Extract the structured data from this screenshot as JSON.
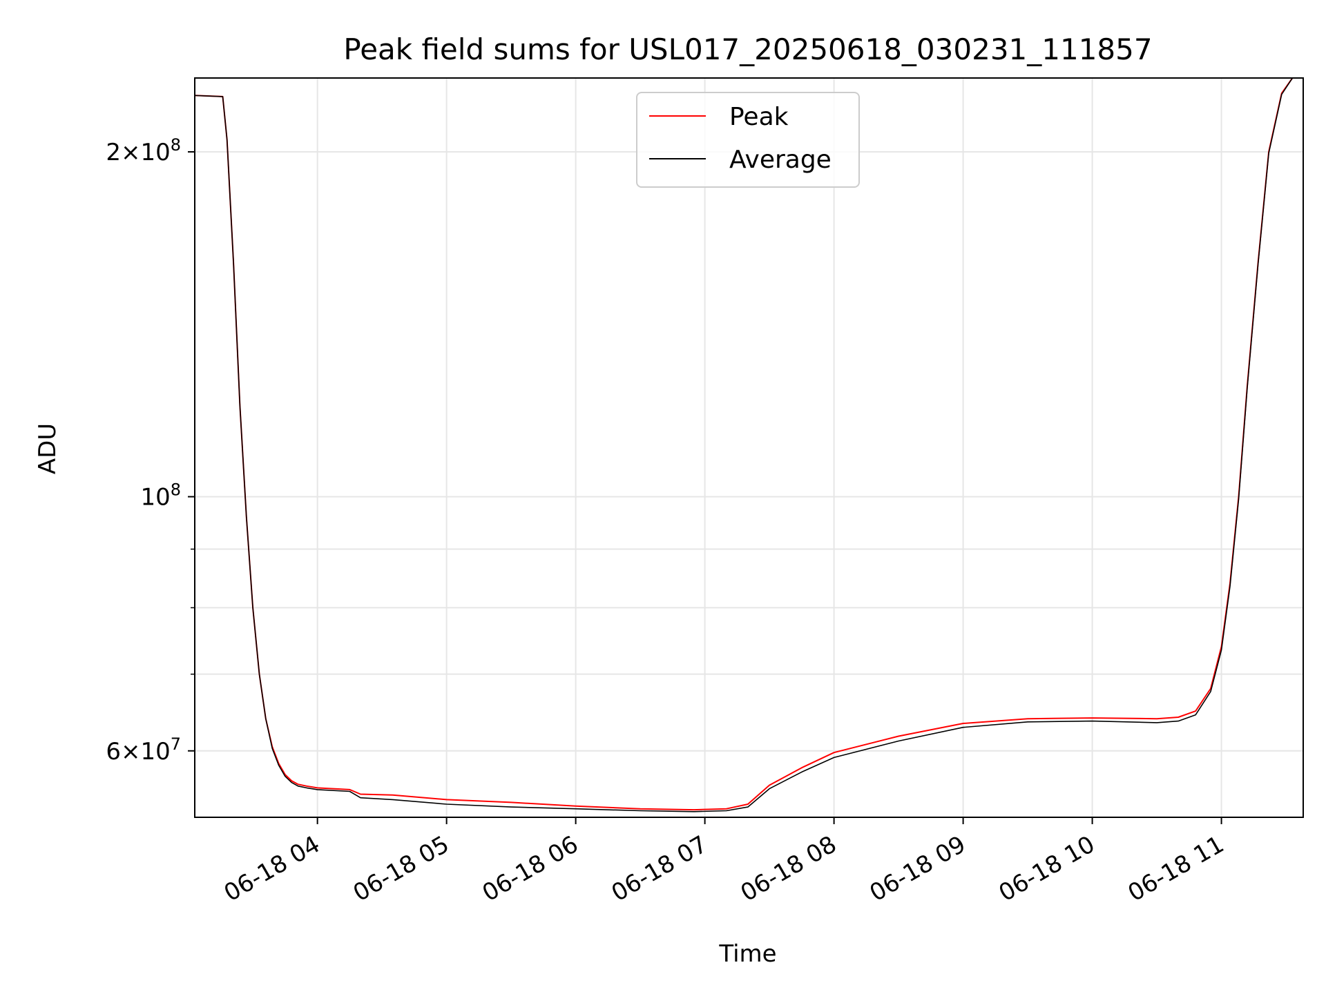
{
  "chart_data": {
    "type": "line",
    "title": "Peak field sums for USL017_20250618_030231_111857",
    "xlabel": "Time",
    "ylabel": "ADU",
    "x_scale": "time",
    "y_scale": "log",
    "xlim": [
      "2025-06-18 03:03",
      "2025-06-18 11:38"
    ],
    "ylim": [
      52500000,
      232000000
    ],
    "grid": true,
    "legend_position": "upper center",
    "x_ticks": [
      {
        "value": "2025-06-18 04:00",
        "label": "06-18 04"
      },
      {
        "value": "2025-06-18 05:00",
        "label": "06-18 05"
      },
      {
        "value": "2025-06-18 06:00",
        "label": "06-18 06"
      },
      {
        "value": "2025-06-18 07:00",
        "label": "06-18 07"
      },
      {
        "value": "2025-06-18 08:00",
        "label": "06-18 08"
      },
      {
        "value": "2025-06-18 09:00",
        "label": "06-18 09"
      },
      {
        "value": "2025-06-18 10:00",
        "label": "06-18 10"
      },
      {
        "value": "2025-06-18 11:00",
        "label": "06-18 11"
      }
    ],
    "y_ticks": [
      {
        "value": 200000000,
        "mantissa": "2",
        "exponent": "8"
      },
      {
        "value": 100000000,
        "mantissa": "",
        "exponent": "8"
      },
      {
        "value": 60000000,
        "mantissa": "6",
        "exponent": "7"
      }
    ],
    "y_minor_ticks": [
      70000000,
      80000000,
      90000000
    ],
    "series": [
      {
        "name": "Peak",
        "color": "#ff0000",
        "x": [
          "2025-06-18 03:03",
          "2025-06-18 03:16",
          "2025-06-18 03:18",
          "2025-06-18 03:21",
          "2025-06-18 03:24",
          "2025-06-18 03:27",
          "2025-06-18 03:30",
          "2025-06-18 03:33",
          "2025-06-18 03:36",
          "2025-06-18 03:39",
          "2025-06-18 03:42",
          "2025-06-18 03:45",
          "2025-06-18 03:48",
          "2025-06-18 03:51",
          "2025-06-18 03:55",
          "2025-06-18 04:00",
          "2025-06-18 04:15",
          "2025-06-18 04:20",
          "2025-06-18 04:35",
          "2025-06-18 05:00",
          "2025-06-18 05:30",
          "2025-06-18 06:00",
          "2025-06-18 06:30",
          "2025-06-18 06:55",
          "2025-06-18 07:10",
          "2025-06-18 07:20",
          "2025-06-18 07:30",
          "2025-06-18 07:45",
          "2025-06-18 08:00",
          "2025-06-18 08:30",
          "2025-06-18 09:00",
          "2025-06-18 09:30",
          "2025-06-18 10:00",
          "2025-06-18 10:30",
          "2025-06-18 10:40",
          "2025-06-18 10:48",
          "2025-06-18 10:55",
          "2025-06-18 11:00",
          "2025-06-18 11:04",
          "2025-06-18 11:08",
          "2025-06-18 11:12",
          "2025-06-18 11:17",
          "2025-06-18 11:22",
          "2025-06-18 11:28",
          "2025-06-18 11:33"
        ],
        "y": [
          224000000,
          223500000,
          205000000,
          160000000,
          120000000,
          96000000,
          80000000,
          70000000,
          64000000,
          60500000,
          58500000,
          57200000,
          56500000,
          56100000,
          55900000,
          55700000,
          55500000,
          55000000,
          54900000,
          54400000,
          54100000,
          53700000,
          53400000,
          53300000,
          53400000,
          53900000,
          56000000,
          58000000,
          59800000,
          61800000,
          63400000,
          64000000,
          64100000,
          64000000,
          64200000,
          65000000,
          68000000,
          74000000,
          84000000,
          100000000,
          125000000,
          160000000,
          200000000,
          225000000,
          232000000
        ]
      },
      {
        "name": "Average",
        "color": "#000000",
        "x": [
          "2025-06-18 03:03",
          "2025-06-18 03:16",
          "2025-06-18 03:18",
          "2025-06-18 03:21",
          "2025-06-18 03:24",
          "2025-06-18 03:27",
          "2025-06-18 03:30",
          "2025-06-18 03:33",
          "2025-06-18 03:36",
          "2025-06-18 03:39",
          "2025-06-18 03:42",
          "2025-06-18 03:45",
          "2025-06-18 03:48",
          "2025-06-18 03:51",
          "2025-06-18 03:55",
          "2025-06-18 04:00",
          "2025-06-18 04:15",
          "2025-06-18 04:20",
          "2025-06-18 04:35",
          "2025-06-18 05:00",
          "2025-06-18 05:30",
          "2025-06-18 06:00",
          "2025-06-18 06:30",
          "2025-06-18 06:55",
          "2025-06-18 07:10",
          "2025-06-18 07:20",
          "2025-06-18 07:30",
          "2025-06-18 07:45",
          "2025-06-18 08:00",
          "2025-06-18 08:30",
          "2025-06-18 09:00",
          "2025-06-18 09:30",
          "2025-06-18 10:00",
          "2025-06-18 10:30",
          "2025-06-18 10:40",
          "2025-06-18 10:48",
          "2025-06-18 10:55",
          "2025-06-18 11:00",
          "2025-06-18 11:04",
          "2025-06-18 11:08",
          "2025-06-18 11:12",
          "2025-06-18 11:17",
          "2025-06-18 11:22",
          "2025-06-18 11:28",
          "2025-06-18 11:33"
        ],
        "y": [
          224000000,
          223500000,
          205000000,
          160000000,
          120000000,
          96000000,
          80000000,
          70000000,
          64000000,
          60300000,
          58300000,
          57000000,
          56300000,
          55900000,
          55700000,
          55500000,
          55300000,
          54600000,
          54400000,
          53900000,
          53600000,
          53400000,
          53200000,
          53100000,
          53200000,
          53600000,
          55600000,
          57500000,
          59200000,
          61200000,
          62900000,
          63600000,
          63700000,
          63500000,
          63700000,
          64500000,
          67600000,
          73500000,
          83500000,
          99500000,
          124500000,
          159500000,
          199500000,
          224500000,
          232000000
        ]
      }
    ]
  }
}
